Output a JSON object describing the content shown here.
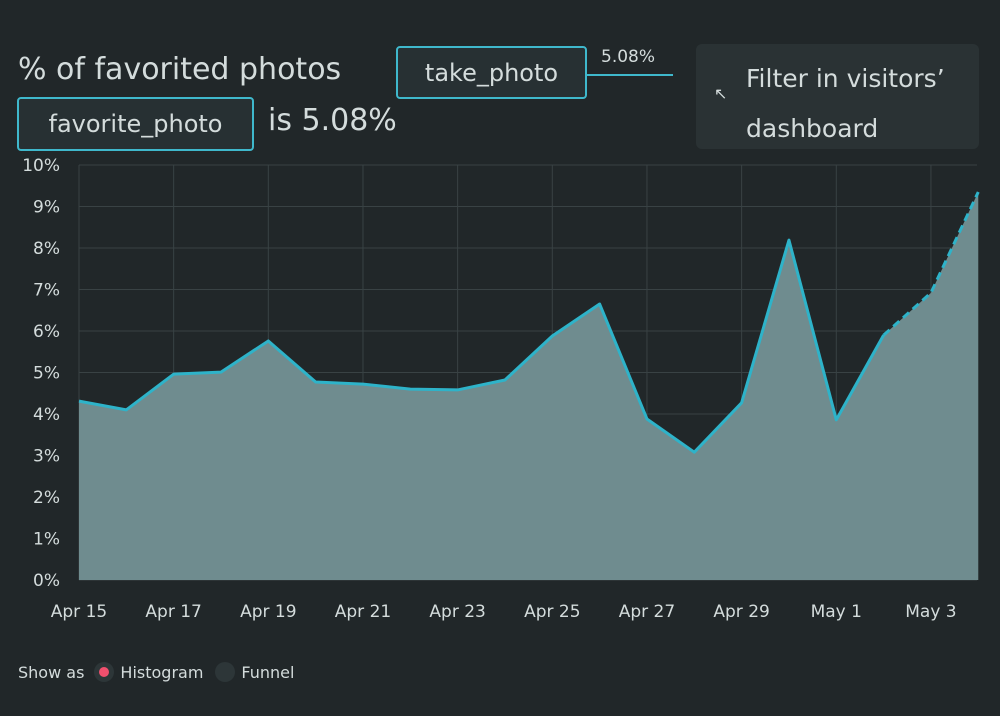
{
  "header": {
    "title_prefix": "% of favorited photos",
    "event_a": "take_photo",
    "event_b": "favorite_photo",
    "title_suffix": "is 5.08%",
    "connector_value": "5.08%"
  },
  "filter_hint": {
    "icon": "arrow-up-left-icon",
    "text_line1": "Filter in visitors’",
    "text_line2": "dashboard"
  },
  "legend": {
    "label": "Show as",
    "options": [
      {
        "label": "Histogram",
        "selected": true,
        "color": "#f0506e"
      },
      {
        "label": "Funnel",
        "selected": false
      }
    ]
  },
  "colors": {
    "line": "#2eb3c9",
    "fill": "#6f8c8f",
    "background": "#212729",
    "grid": "#394244"
  },
  "chart_data": {
    "type": "area",
    "x": [
      "Apr 15",
      "Apr 16",
      "Apr 17",
      "Apr 18",
      "Apr 19",
      "Apr 20",
      "Apr 21",
      "Apr 22",
      "Apr 23",
      "Apr 24",
      "Apr 25",
      "Apr 26",
      "Apr 27",
      "Apr 28",
      "Apr 29",
      "Apr 30",
      "May 1",
      "May 2",
      "May 3",
      "May 4"
    ],
    "values": [
      4.31,
      4.1,
      4.96,
      5.01,
      5.76,
      4.77,
      4.72,
      4.6,
      4.58,
      4.82,
      5.88,
      6.65,
      3.88,
      3.08,
      4.27,
      8.19,
      3.86,
      5.9,
      6.92,
      9.35
    ],
    "incomplete_from": "May 2",
    "x_tick_labels": [
      "Apr 15",
      "Apr 17",
      "Apr 19",
      "Apr 21",
      "Apr 23",
      "Apr 25",
      "Apr 27",
      "Apr 29",
      "May 1",
      "May 3"
    ],
    "y_tick_labels": [
      "0%",
      "1%",
      "2%",
      "3%",
      "4%",
      "5%",
      "6%",
      "7%",
      "8%",
      "9%",
      "10%"
    ],
    "ylim": [
      0,
      10
    ],
    "grid": true
  }
}
